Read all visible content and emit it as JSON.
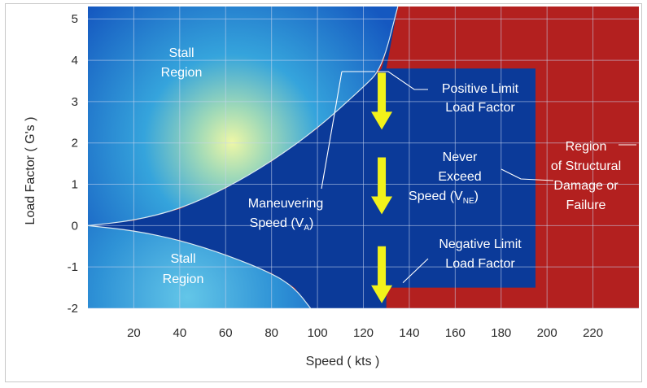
{
  "chart_data": {
    "type": "area",
    "xlabel": "Speed ( kts )",
    "ylabel": "Load Factor ( G's )",
    "xlim": [
      0,
      240
    ],
    "ylim": [
      -2,
      5.3
    ],
    "x_ticks": [
      20,
      40,
      60,
      80,
      100,
      120,
      140,
      160,
      180,
      200,
      220
    ],
    "y_ticks": [
      5,
      4,
      3,
      2,
      1,
      0,
      -1,
      -2
    ],
    "y_tick_labels": [
      "5",
      "4",
      "3",
      "2",
      "1",
      "0",
      "-1",
      "-2"
    ],
    "grid": true,
    "positive_limit_load_factor": 3.8,
    "negative_limit_load_factor": -1.5,
    "maneuvering_speed": 128,
    "never_exceed_speed": 130,
    "positive_stall_curve": {
      "x": [
        0,
        20,
        40,
        60,
        80,
        100,
        120,
        128,
        135
      ],
      "y": [
        0,
        0.12,
        0.4,
        0.9,
        1.55,
        2.35,
        3.35,
        3.8,
        5.3
      ]
    },
    "negative_stall_curve": {
      "x": [
        0,
        20,
        40,
        60,
        80,
        90,
        97
      ],
      "y": [
        0,
        -0.12,
        -0.35,
        -0.7,
        -1.15,
        -1.5,
        -2
      ]
    },
    "annotations": {
      "stall_upper": [
        "Stall",
        "Region"
      ],
      "stall_lower": [
        "Stall",
        "Region"
      ],
      "positive_limit": [
        "Positive Limit",
        "Load Factor"
      ],
      "negative_limit": [
        "Negative Limit",
        "Load Factor"
      ],
      "never_exceed_line1": "Never",
      "never_exceed_line2": "Exceed",
      "never_exceed_line3": "Speed (V",
      "never_exceed_sub": "NE",
      "maneuvering_line1": "Maneuvering",
      "maneuvering_line2": "Speed (V",
      "maneuvering_sub": "A",
      "structural_damage": [
        "Region",
        "of Structural",
        "Damage or",
        "Failure"
      ],
      "paren_close": ")"
    },
    "colors": {
      "safe_envelope": "#0b3a99",
      "structural_damage": "#b3201f",
      "stall_gradient_center": "#e8f5a0",
      "stall_gradient_edge": "#1a5fc4",
      "arrow": "#f2f21a"
    }
  }
}
